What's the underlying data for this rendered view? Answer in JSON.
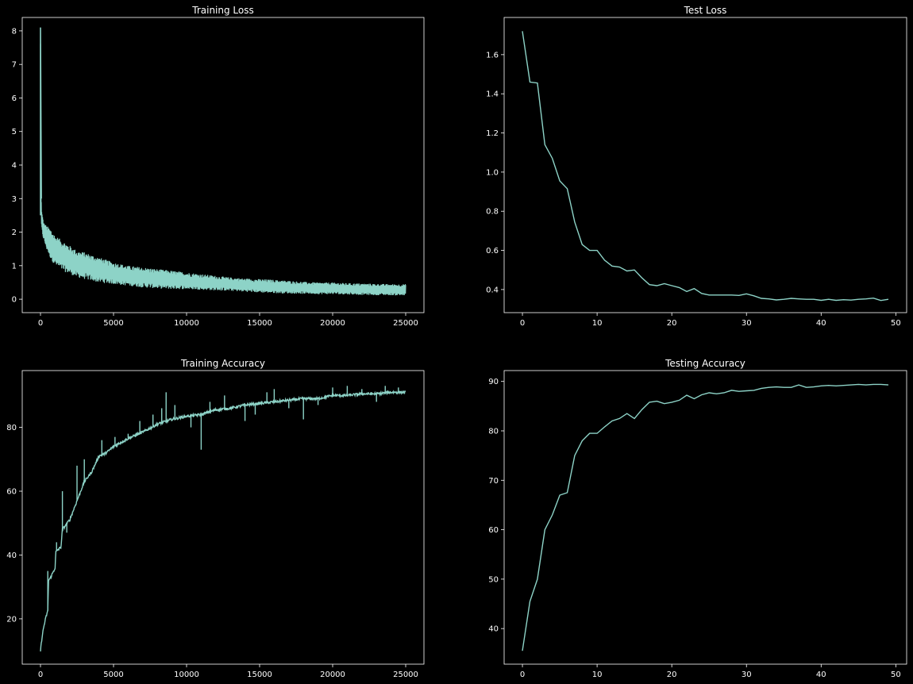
{
  "figure": {
    "background": "#000000",
    "line_color": "#8dd3c7",
    "axis_color": "#ffffff"
  },
  "chart_data": [
    {
      "id": "training-loss",
      "type": "line",
      "title": "Training Loss",
      "xlabel": "",
      "ylabel": "",
      "xlim": [
        -1250,
        26250
      ],
      "ylim": [
        -0.4,
        8.4
      ],
      "xticks": [
        0,
        5000,
        10000,
        15000,
        20000,
        25000
      ],
      "yticks": [
        0,
        1,
        2,
        3,
        4,
        5,
        6,
        7,
        8
      ],
      "grid": false,
      "noisy_band": true,
      "series": [
        {
          "x": [
            0,
            50,
            100,
            200,
            400,
            700,
            1000,
            1500,
            2000,
            2500,
            3000,
            4000,
            5000,
            6000,
            7000,
            8000,
            9000,
            10000,
            11000,
            12000,
            13000,
            14000,
            15000,
            16000,
            17000,
            18000,
            19000,
            20000,
            21000,
            22000,
            23000,
            24000,
            25000
          ],
          "upper": [
            8.1,
            3.0,
            2.6,
            2.3,
            2.2,
            2.1,
            1.9,
            1.75,
            1.6,
            1.45,
            1.4,
            1.25,
            1.1,
            1.0,
            0.95,
            0.9,
            0.85,
            0.8,
            0.75,
            0.7,
            0.65,
            0.62,
            0.6,
            0.58,
            0.55,
            0.52,
            0.5,
            0.5,
            0.48,
            0.47,
            0.46,
            0.45,
            0.45
          ],
          "lower": [
            2.5,
            2.2,
            2.0,
            1.8,
            1.5,
            1.2,
            1.0,
            0.85,
            0.75,
            0.65,
            0.6,
            0.5,
            0.45,
            0.4,
            0.35,
            0.32,
            0.3,
            0.3,
            0.28,
            0.26,
            0.25,
            0.22,
            0.2,
            0.18,
            0.17,
            0.16,
            0.15,
            0.15,
            0.14,
            0.13,
            0.12,
            0.12,
            0.1
          ]
        }
      ]
    },
    {
      "id": "test-loss",
      "type": "line",
      "title": "Test Loss",
      "xlabel": "",
      "ylabel": "",
      "xlim": [
        -2.45,
        51.45
      ],
      "ylim": [
        0.282,
        1.79
      ],
      "xticks": [
        0,
        10,
        20,
        30,
        40,
        50
      ],
      "yticks": [
        0.4,
        0.6,
        0.8,
        1.0,
        1.2,
        1.4,
        1.6
      ],
      "ytick_labels": [
        "0.4",
        "0.6",
        "0.8",
        "1.0",
        "1.2",
        "1.4",
        "1.6"
      ],
      "grid": false,
      "series": [
        {
          "x": [
            0,
            1,
            2,
            3,
            4,
            5,
            6,
            7,
            8,
            9,
            10,
            11,
            12,
            13,
            14,
            15,
            16,
            17,
            18,
            19,
            20,
            21,
            22,
            23,
            24,
            25,
            26,
            27,
            28,
            29,
            30,
            31,
            32,
            33,
            34,
            35,
            36,
            37,
            38,
            39,
            40,
            41,
            42,
            43,
            44,
            45,
            46,
            47,
            48,
            49
          ],
          "y": [
            1.72,
            1.46,
            1.455,
            1.14,
            1.07,
            0.955,
            0.915,
            0.745,
            0.63,
            0.6,
            0.6,
            0.55,
            0.52,
            0.515,
            0.495,
            0.5,
            0.46,
            0.425,
            0.42,
            0.43,
            0.42,
            0.41,
            0.39,
            0.405,
            0.38,
            0.372,
            0.372,
            0.372,
            0.372,
            0.37,
            0.378,
            0.368,
            0.355,
            0.352,
            0.347,
            0.35,
            0.355,
            0.352,
            0.35,
            0.35,
            0.345,
            0.35,
            0.345,
            0.348,
            0.346,
            0.35,
            0.352,
            0.356,
            0.344,
            0.35
          ]
        }
      ]
    },
    {
      "id": "training-accuracy",
      "type": "line",
      "title": "Training Accuracy",
      "xlabel": "",
      "ylabel": "",
      "xlim": [
        -1250,
        26250
      ],
      "ylim": [
        5.8,
        97.8
      ],
      "xticks": [
        0,
        5000,
        10000,
        15000,
        20000,
        25000
      ],
      "yticks": [
        20,
        40,
        60,
        80
      ],
      "grid": false,
      "series": [
        {
          "x": [
            0,
            100,
            200,
            300,
            400,
            500,
            550,
            700,
            1000,
            1050,
            1400,
            1500,
            2000,
            2500,
            3000,
            3500,
            4000,
            4500,
            5000,
            6000,
            7000,
            8000,
            9000,
            10000,
            11000,
            12000,
            13000,
            14000,
            15000,
            16000,
            17000,
            18000,
            19000,
            20000,
            21000,
            22000,
            23000,
            24000,
            25000
          ],
          "y": [
            10,
            14,
            17,
            19,
            21,
            22.5,
            32,
            33,
            36,
            41,
            42.5,
            48,
            51,
            57,
            63,
            66,
            71,
            72,
            74,
            76.5,
            78.5,
            81,
            82.5,
            83.5,
            84,
            85.5,
            86,
            87,
            87.5,
            88,
            88.5,
            89,
            89,
            90,
            90,
            90.5,
            90.5,
            91,
            91
          ]
        }
      ],
      "spikes": [
        {
          "x": 500,
          "y": 35
        },
        {
          "x": 1100,
          "y": 44
        },
        {
          "x": 1500,
          "y": 60
        },
        {
          "x": 1800,
          "y": 47
        },
        {
          "x": 2500,
          "y": 68
        },
        {
          "x": 3000,
          "y": 70
        },
        {
          "x": 4200,
          "y": 76
        },
        {
          "x": 5100,
          "y": 77
        },
        {
          "x": 6000,
          "y": 78
        },
        {
          "x": 6800,
          "y": 82
        },
        {
          "x": 7700,
          "y": 84
        },
        {
          "x": 8300,
          "y": 86
        },
        {
          "x": 8600,
          "y": 91
        },
        {
          "x": 9200,
          "y": 87
        },
        {
          "x": 10300,
          "y": 80
        },
        {
          "x": 11000,
          "y": 73
        },
        {
          "x": 11600,
          "y": 88
        },
        {
          "x": 12600,
          "y": 90
        },
        {
          "x": 14000,
          "y": 82
        },
        {
          "x": 14700,
          "y": 84
        },
        {
          "x": 15500,
          "y": 91
        },
        {
          "x": 16000,
          "y": 92
        },
        {
          "x": 17000,
          "y": 86
        },
        {
          "x": 18000,
          "y": 82.5
        },
        {
          "x": 19000,
          "y": 87
        },
        {
          "x": 20000,
          "y": 92.5
        },
        {
          "x": 21000,
          "y": 93
        },
        {
          "x": 22000,
          "y": 92
        },
        {
          "x": 23000,
          "y": 88
        },
        {
          "x": 23600,
          "y": 93
        },
        {
          "x": 24500,
          "y": 92.5
        }
      ]
    },
    {
      "id": "testing-accuracy",
      "type": "line",
      "title": "Testing Accuracy",
      "xlabel": "",
      "ylabel": "",
      "xlim": [
        -2.45,
        51.45
      ],
      "ylim": [
        32.8,
        92.2
      ],
      "xticks": [
        0,
        10,
        20,
        30,
        40,
        50
      ],
      "yticks": [
        40,
        50,
        60,
        70,
        80,
        90
      ],
      "grid": false,
      "series": [
        {
          "x": [
            0,
            1,
            2,
            3,
            4,
            5,
            6,
            7,
            8,
            9,
            10,
            11,
            12,
            13,
            14,
            15,
            16,
            17,
            18,
            19,
            20,
            21,
            22,
            23,
            24,
            25,
            26,
            27,
            28,
            29,
            30,
            31,
            32,
            33,
            34,
            35,
            36,
            37,
            38,
            39,
            40,
            41,
            42,
            43,
            44,
            45,
            46,
            47,
            48,
            49
          ],
          "y": [
            35.5,
            45.5,
            50,
            60,
            63,
            67,
            67.5,
            75,
            78,
            79.5,
            79.5,
            80.8,
            82,
            82.5,
            83.5,
            82.5,
            84.3,
            85.8,
            86,
            85.5,
            85.8,
            86.2,
            87.2,
            86.5,
            87.3,
            87.7,
            87.5,
            87.7,
            88.2,
            88,
            88.1,
            88.2,
            88.6,
            88.8,
            88.9,
            88.8,
            88.8,
            89.3,
            88.8,
            88.9,
            89.1,
            89.2,
            89.1,
            89.2,
            89.3,
            89.4,
            89.3,
            89.4,
            89.4,
            89.3
          ]
        }
      ]
    }
  ]
}
